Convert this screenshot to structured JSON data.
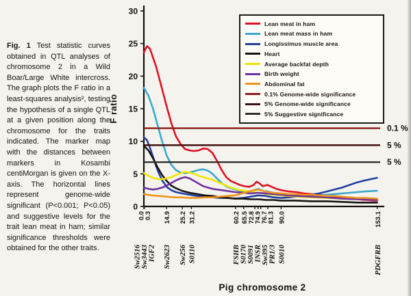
{
  "caption": {
    "label": "Fig. 1",
    "text": " Test statistic curves obtained in QTL analyses of chromosome 2 in a Wild Boar/Large White intercross. The graph plots the F ratio in a least-squares analysis², testing the hypothesis of a single QTL at a given position along the chromosome for the traits indicated. The marker map with the distances between markers in Kosambi centiMorgan is given on the X-axis. The horizontal lines represent genome-wide significant (P<0.001; P<0.05) and suggestive levels for the trait lean meat in ham; similar significance thresholds were obtained for the other traits."
  },
  "chart_data": {
    "type": "line",
    "title": "",
    "xlabel": "Pig chromosome 2",
    "ylabel": "F ratio",
    "xlim": [
      0,
      155
    ],
    "ylim": [
      0,
      30
    ],
    "yticks": [
      0,
      5,
      10,
      15,
      20,
      25,
      30
    ],
    "grid": false,
    "legend_position": "top-right",
    "x_unit": "Kosambi centiMorgan",
    "series": [
      {
        "name": "Lean meat in ham",
        "color": "#e01020",
        "points": [
          [
            0,
            23.6
          ],
          [
            2,
            24.6
          ],
          [
            4,
            24.2
          ],
          [
            8,
            21.5
          ],
          [
            12,
            18.0
          ],
          [
            15,
            15.3
          ],
          [
            18,
            12.8
          ],
          [
            21,
            10.8
          ],
          [
            24,
            9.6
          ],
          [
            27,
            8.8
          ],
          [
            30,
            8.6
          ],
          [
            33,
            8.5
          ],
          [
            36,
            8.6
          ],
          [
            39,
            8.9
          ],
          [
            42,
            8.8
          ],
          [
            45,
            8.2
          ],
          [
            48,
            7.0
          ],
          [
            51,
            5.6
          ],
          [
            54,
            4.5
          ],
          [
            57,
            3.9
          ],
          [
            60,
            3.6
          ],
          [
            63,
            3.3
          ],
          [
            66,
            3.1
          ],
          [
            69,
            3.0
          ],
          [
            72,
            3.3
          ],
          [
            74,
            3.8
          ],
          [
            76,
            3.5
          ],
          [
            78,
            3.1
          ],
          [
            81,
            3.3
          ],
          [
            84,
            3.0
          ],
          [
            87,
            2.7
          ],
          [
            90,
            2.5
          ],
          [
            95,
            2.3
          ],
          [
            100,
            2.2
          ],
          [
            105,
            2.0
          ],
          [
            110,
            1.9
          ],
          [
            115,
            1.8
          ],
          [
            120,
            1.7
          ],
          [
            125,
            1.5
          ],
          [
            130,
            1.4
          ],
          [
            135,
            1.2
          ],
          [
            140,
            1.1
          ],
          [
            145,
            1.0
          ],
          [
            153,
            0.9
          ]
        ]
      },
      {
        "name": "Lean meat mass in ham",
        "color": "#38a8cc",
        "points": [
          [
            0,
            18.2
          ],
          [
            3,
            17.0
          ],
          [
            6,
            15.0
          ],
          [
            9,
            12.5
          ],
          [
            12,
            10.0
          ],
          [
            15,
            7.8
          ],
          [
            18,
            6.4
          ],
          [
            21,
            5.6
          ],
          [
            24,
            5.2
          ],
          [
            27,
            5.1
          ],
          [
            30,
            5.2
          ],
          [
            33,
            5.4
          ],
          [
            36,
            5.6
          ],
          [
            39,
            5.7
          ],
          [
            42,
            5.5
          ],
          [
            45,
            5.0
          ],
          [
            48,
            4.3
          ],
          [
            51,
            3.6
          ],
          [
            54,
            3.1
          ],
          [
            57,
            2.8
          ],
          [
            60,
            2.6
          ],
          [
            63,
            2.4
          ],
          [
            66,
            2.3
          ],
          [
            69,
            2.3
          ],
          [
            72,
            2.5
          ],
          [
            75,
            2.7
          ],
          [
            78,
            2.4
          ],
          [
            81,
            2.3
          ],
          [
            85,
            2.1
          ],
          [
            90,
            2.0
          ],
          [
            95,
            1.9
          ],
          [
            100,
            1.8
          ],
          [
            105,
            1.8
          ],
          [
            110,
            1.7
          ],
          [
            115,
            1.7
          ],
          [
            120,
            1.8
          ],
          [
            125,
            1.9
          ],
          [
            130,
            2.0
          ],
          [
            135,
            2.1
          ],
          [
            140,
            2.2
          ],
          [
            145,
            2.3
          ],
          [
            153,
            2.4
          ]
        ]
      },
      {
        "name": "Longissimus muscle area",
        "color": "#1f3f9f",
        "points": [
          [
            0,
            10.6
          ],
          [
            2,
            10.2
          ],
          [
            4,
            9.0
          ],
          [
            6,
            7.6
          ],
          [
            8,
            6.2
          ],
          [
            10,
            5.0
          ],
          [
            12,
            4.0
          ],
          [
            15,
            3.0
          ],
          [
            18,
            2.5
          ],
          [
            21,
            2.2
          ],
          [
            25,
            2.0
          ],
          [
            30,
            1.8
          ],
          [
            35,
            1.6
          ],
          [
            40,
            1.5
          ],
          [
            45,
            1.4
          ],
          [
            50,
            1.3
          ],
          [
            55,
            1.3
          ],
          [
            60,
            1.2
          ],
          [
            65,
            1.3
          ],
          [
            70,
            1.5
          ],
          [
            75,
            1.7
          ],
          [
            80,
            1.6
          ],
          [
            85,
            1.4
          ],
          [
            90,
            1.3
          ],
          [
            95,
            1.4
          ],
          [
            100,
            1.5
          ],
          [
            105,
            1.6
          ],
          [
            110,
            1.8
          ],
          [
            115,
            2.0
          ],
          [
            120,
            2.3
          ],
          [
            125,
            2.6
          ],
          [
            130,
            2.9
          ],
          [
            135,
            3.3
          ],
          [
            140,
            3.7
          ],
          [
            145,
            4.0
          ],
          [
            153,
            4.4
          ]
        ]
      },
      {
        "name": "Heart",
        "color": "#161310",
        "points": [
          [
            0,
            9.3
          ],
          [
            3,
            8.6
          ],
          [
            6,
            7.4
          ],
          [
            9,
            6.0
          ],
          [
            12,
            4.8
          ],
          [
            15,
            3.9
          ],
          [
            18,
            3.2
          ],
          [
            21,
            2.8
          ],
          [
            25,
            2.4
          ],
          [
            30,
            2.1
          ],
          [
            35,
            1.9
          ],
          [
            40,
            1.7
          ],
          [
            45,
            1.6
          ],
          [
            50,
            1.4
          ],
          [
            55,
            1.3
          ],
          [
            60,
            1.2
          ],
          [
            65,
            1.2
          ],
          [
            70,
            1.1
          ],
          [
            75,
            1.1
          ],
          [
            80,
            1.0
          ],
          [
            85,
            1.0
          ],
          [
            90,
            0.9
          ],
          [
            100,
            0.9
          ],
          [
            110,
            0.8
          ],
          [
            120,
            0.8
          ],
          [
            130,
            0.7
          ],
          [
            140,
            0.6
          ],
          [
            153,
            0.6
          ]
        ]
      },
      {
        "name": "Average backfat depth",
        "color": "#f2e400",
        "points": [
          [
            0,
            5.1
          ],
          [
            3,
            4.7
          ],
          [
            6,
            4.4
          ],
          [
            9,
            4.2
          ],
          [
            12,
            4.2
          ],
          [
            15,
            4.3
          ],
          [
            18,
            4.5
          ],
          [
            21,
            4.8
          ],
          [
            24,
            5.1
          ],
          [
            27,
            5.3
          ],
          [
            30,
            5.2
          ],
          [
            33,
            5.0
          ],
          [
            36,
            4.7
          ],
          [
            39,
            4.5
          ],
          [
            42,
            4.3
          ],
          [
            45,
            4.1
          ],
          [
            48,
            3.8
          ],
          [
            51,
            3.5
          ],
          [
            54,
            3.2
          ],
          [
            57,
            2.9
          ],
          [
            60,
            2.7
          ],
          [
            63,
            2.5
          ],
          [
            66,
            2.4
          ],
          [
            69,
            2.3
          ],
          [
            72,
            2.2
          ],
          [
            75,
            2.1
          ],
          [
            78,
            2.0
          ],
          [
            81,
            1.9
          ],
          [
            85,
            1.8
          ],
          [
            90,
            1.7
          ],
          [
            95,
            1.6
          ],
          [
            100,
            1.5
          ],
          [
            110,
            1.4
          ],
          [
            120,
            1.3
          ],
          [
            130,
            1.2
          ],
          [
            140,
            1.1
          ],
          [
            153,
            1.0
          ]
        ]
      },
      {
        "name": "Birth weight",
        "color": "#7030a0",
        "points": [
          [
            0,
            2.9
          ],
          [
            3,
            2.7
          ],
          [
            6,
            2.6
          ],
          [
            9,
            2.7
          ],
          [
            12,
            2.9
          ],
          [
            15,
            3.2
          ],
          [
            18,
            3.6
          ],
          [
            21,
            4.0
          ],
          [
            24,
            4.3
          ],
          [
            27,
            4.5
          ],
          [
            30,
            4.3
          ],
          [
            33,
            3.9
          ],
          [
            36,
            3.5
          ],
          [
            39,
            3.1
          ],
          [
            42,
            2.9
          ],
          [
            45,
            2.7
          ],
          [
            48,
            2.6
          ],
          [
            51,
            2.5
          ],
          [
            54,
            2.4
          ],
          [
            57,
            2.3
          ],
          [
            60,
            2.2
          ],
          [
            65,
            2.1
          ],
          [
            70,
            2.0
          ],
          [
            75,
            2.1
          ],
          [
            80,
            2.0
          ],
          [
            85,
            1.9
          ],
          [
            90,
            1.8
          ],
          [
            95,
            1.7
          ],
          [
            100,
            1.6
          ],
          [
            110,
            1.5
          ],
          [
            120,
            1.4
          ],
          [
            130,
            1.2
          ],
          [
            140,
            1.1
          ],
          [
            153,
            1.0
          ]
        ]
      },
      {
        "name": "Abdominal fat",
        "color": "#ef951c",
        "points": [
          [
            0,
            1.9
          ],
          [
            5,
            1.7
          ],
          [
            10,
            1.6
          ],
          [
            15,
            1.5
          ],
          [
            20,
            1.4
          ],
          [
            25,
            1.4
          ],
          [
            30,
            1.3
          ],
          [
            35,
            1.3
          ],
          [
            40,
            1.4
          ],
          [
            45,
            1.4
          ],
          [
            50,
            1.5
          ],
          [
            55,
            1.6
          ],
          [
            60,
            1.7
          ],
          [
            63,
            1.9
          ],
          [
            66,
            2.1
          ],
          [
            69,
            2.3
          ],
          [
            72,
            2.5
          ],
          [
            75,
            2.6
          ],
          [
            78,
            2.4
          ],
          [
            81,
            2.2
          ],
          [
            85,
            2.1
          ],
          [
            90,
            2.0
          ],
          [
            95,
            1.9
          ],
          [
            100,
            1.9
          ],
          [
            105,
            1.8
          ],
          [
            110,
            1.8
          ],
          [
            115,
            1.7
          ],
          [
            120,
            1.6
          ],
          [
            125,
            1.6
          ],
          [
            130,
            1.5
          ],
          [
            135,
            1.4
          ],
          [
            140,
            1.3
          ],
          [
            145,
            1.3
          ],
          [
            153,
            1.2
          ]
        ]
      }
    ],
    "thresholds": [
      {
        "name": "0.1% Genome-wide significance",
        "right_label": "0.1 %",
        "value": 12.0,
        "color": "#8b1a1a"
      },
      {
        "name": "5% Genome-wide significance",
        "right_label": "5 %",
        "value": 9.4,
        "color": "#401010"
      },
      {
        "name": "5% Suggestive significance",
        "right_label": "5 %",
        "value": 6.8,
        "color": "#303030"
      }
    ],
    "distances": [
      {
        "label": "0.0",
        "cm": 0.0
      },
      {
        "label": "0.3",
        "cm": 0.3
      },
      {
        "label": "14.9",
        "cm": 14.9
      },
      {
        "label": "25.2",
        "cm": 25.2
      },
      {
        "label": "31.2",
        "cm": 31.2
      },
      {
        "label": "60.2",
        "cm": 60.2
      },
      {
        "label": "65.5",
        "cm": 65.5
      },
      {
        "label": "72.8",
        "cm": 72.8
      },
      {
        "label": "74.9",
        "cm": 74.9
      },
      {
        "label": "76.7",
        "cm": 76.7
      },
      {
        "label": "81.3",
        "cm": 81.3
      },
      {
        "label": "90.0",
        "cm": 90.0
      },
      {
        "label": "153.1",
        "cm": 153.1
      }
    ],
    "markers": [
      {
        "name": "Sw2516",
        "cm": 0.0
      },
      {
        "name": "Sw3443",
        "cm": 0.0
      },
      {
        "name": "IGF2",
        "cm": 0.3
      },
      {
        "name": "Sw2623",
        "cm": 14.9
      },
      {
        "name": "Sw256",
        "cm": 25.2
      },
      {
        "name": "S0110",
        "cm": 31.2
      },
      {
        "name": "FSHB",
        "cm": 60.2
      },
      {
        "name": "S0170",
        "cm": 65.5
      },
      {
        "name": "S0091",
        "cm": 72.8
      },
      {
        "name": "INSR",
        "cm": 74.9
      },
      {
        "name": "Sw395",
        "cm": 76.7
      },
      {
        "name": "PR1/3",
        "cm": 81.3
      },
      {
        "name": "S0010",
        "cm": 90.0
      },
      {
        "name": "PDGFRB",
        "cm": 153.1
      }
    ]
  }
}
